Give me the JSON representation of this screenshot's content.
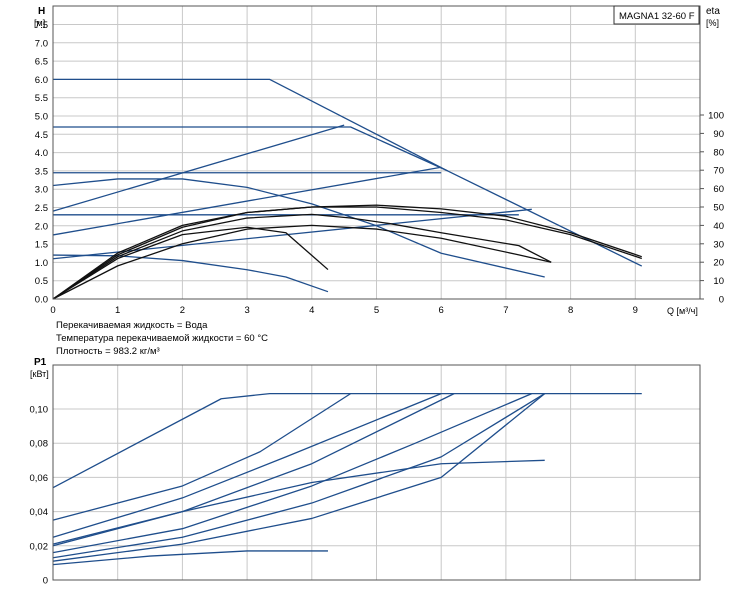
{
  "chart_data": [
    {
      "type": "line",
      "title": "MAGNA1 32-60 F",
      "y_axis_title": "H",
      "y_axis_unit": "[м]",
      "y2_axis_title": "eta",
      "y2_axis_unit": "[%]",
      "x_axis_unit": "Q [м³/ч]",
      "xlim": [
        0,
        10
      ],
      "ylim": [
        0,
        8
      ],
      "y2lim": [
        0,
        130
      ],
      "x_ticks": [
        "0",
        "1",
        "2",
        "3",
        "4",
        "5",
        "6",
        "7",
        "8",
        "9"
      ],
      "y_ticks": [
        "0.0",
        "0.5",
        "1.0",
        "1.5",
        "2.0",
        "2.5",
        "3.0",
        "3.5",
        "4.0",
        "4.5",
        "5.0",
        "5.5",
        "6.0",
        "6.5",
        "7.0",
        "7.5"
      ],
      "y2_ticks": [
        "0",
        "10",
        "20",
        "30",
        "40",
        "50",
        "60",
        "70",
        "80",
        "90",
        "100"
      ],
      "grid": true,
      "notes": [
        "Перекачиваемая жидкость = Вода",
        "Температура перекачиваемой жидкости = 60 °C",
        "Плотность = 983.2 кг/м³"
      ],
      "series": [
        {
          "kind": "head",
          "points": [
            [
              0,
              6.0
            ],
            [
              3.35,
              6.0
            ],
            [
              6.1,
              3.5
            ],
            [
              9.1,
              0.9
            ]
          ]
        },
        {
          "kind": "head",
          "points": [
            [
              0,
              4.7
            ],
            [
              4.6,
              4.7
            ],
            [
              6.1,
              3.5
            ]
          ]
        },
        {
          "kind": "head",
          "points": [
            [
              0,
              3.45
            ],
            [
              6.0,
              3.45
            ]
          ]
        },
        {
          "kind": "head",
          "points": [
            [
              0,
              2.3
            ],
            [
              7.2,
              2.3
            ]
          ]
        },
        {
          "kind": "head",
          "points": [
            [
              0,
              2.4
            ],
            [
              4.5,
              4.75
            ]
          ]
        },
        {
          "kind": "head",
          "points": [
            [
              0,
              1.75
            ],
            [
              6.0,
              3.6
            ]
          ]
        },
        {
          "kind": "head",
          "points": [
            [
              0,
              1.1
            ],
            [
              7.4,
              2.45
            ]
          ]
        },
        {
          "kind": "head",
          "points": [
            [
              0,
              3.1
            ],
            [
              1.0,
              3.28
            ],
            [
              2.0,
              3.28
            ],
            [
              3.0,
              3.05
            ],
            [
              4.0,
              2.6
            ],
            [
              5.0,
              2.0
            ],
            [
              6.0,
              1.25
            ],
            [
              7.6,
              0.6
            ]
          ]
        },
        {
          "kind": "head",
          "points": [
            [
              0,
              1.2
            ],
            [
              1.0,
              1.18
            ],
            [
              2.0,
              1.05
            ],
            [
              3.0,
              0.8
            ],
            [
              3.6,
              0.6
            ],
            [
              4.25,
              0.2
            ]
          ]
        },
        {
          "kind": "eta",
          "points": [
            [
              0,
              0
            ],
            [
              1,
              23
            ],
            [
              2,
              37
            ],
            [
              3,
              44
            ],
            [
              4,
              46
            ],
            [
              4.6,
              44
            ],
            [
              5.2,
              41
            ],
            [
              6,
              36
            ],
            [
              7.2,
              29
            ],
            [
              7.7,
              20
            ]
          ]
        },
        {
          "kind": "eta",
          "points": [
            [
              0,
              0
            ],
            [
              1,
              25
            ],
            [
              2,
              40
            ],
            [
              3,
              47
            ],
            [
              4,
              50
            ],
            [
              5,
              51
            ],
            [
              6,
              49
            ],
            [
              7,
              45
            ],
            [
              8,
              36
            ],
            [
              9.1,
              23
            ]
          ]
        },
        {
          "kind": "eta",
          "points": [
            [
              0,
              0
            ],
            [
              1,
              24
            ],
            [
              2,
              39
            ],
            [
              3,
              47
            ],
            [
              4,
              50
            ],
            [
              5,
              50
            ],
            [
              6,
              47
            ],
            [
              7,
              43
            ],
            [
              8,
              35
            ],
            [
              9.1,
              22
            ]
          ]
        },
        {
          "kind": "eta",
          "points": [
            [
              0,
              0
            ],
            [
              1,
              22
            ],
            [
              2,
              35
            ],
            [
              3,
              39
            ],
            [
              3.6,
              36
            ],
            [
              4.25,
              16
            ]
          ]
        },
        {
          "kind": "eta",
          "points": [
            [
              0,
              0
            ],
            [
              1,
              18
            ],
            [
              2,
              30
            ],
            [
              3,
              38
            ],
            [
              4,
              40
            ],
            [
              5,
              38
            ],
            [
              6,
              33
            ],
            [
              7.2,
              24
            ],
            [
              7.7,
              20
            ]
          ]
        }
      ]
    },
    {
      "type": "line",
      "y_axis_title": "P1",
      "y_axis_unit": "[кВт]",
      "xlim": [
        0,
        10
      ],
      "ylim": [
        0,
        0.12
      ],
      "y_ticks": [
        "0",
        "0,02",
        "0,04",
        "0,06",
        "0,08",
        "0,10"
      ],
      "grid": true,
      "series": [
        {
          "points": [
            [
              0,
              0.054
            ],
            [
              2.6,
              0.106
            ],
            [
              3.35,
              0.109
            ],
            [
              9.1,
              0.109
            ]
          ]
        },
        {
          "points": [
            [
              0,
              0.035
            ],
            [
              2.0,
              0.055
            ],
            [
              3.2,
              0.075
            ],
            [
              4.6,
              0.109
            ]
          ]
        },
        {
          "points": [
            [
              0,
              0.025
            ],
            [
              2.0,
              0.048
            ],
            [
              3.6,
              0.072
            ],
            [
              6.0,
              0.109
            ]
          ]
        },
        {
          "points": [
            [
              0,
              0.021
            ],
            [
              2.0,
              0.04
            ],
            [
              4.0,
              0.068
            ],
            [
              6.2,
              0.109
            ]
          ]
        },
        {
          "points": [
            [
              0,
              0.016
            ],
            [
              2.0,
              0.03
            ],
            [
              4.0,
              0.055
            ],
            [
              5.6,
              0.08
            ],
            [
              7.4,
              0.109
            ]
          ]
        },
        {
          "points": [
            [
              0,
              0.013
            ],
            [
              2.0,
              0.025
            ],
            [
              4.0,
              0.045
            ],
            [
              6.0,
              0.072
            ],
            [
              7.6,
              0.109
            ]
          ]
        },
        {
          "points": [
            [
              0,
              0.011
            ],
            [
              2.0,
              0.021
            ],
            [
              4.0,
              0.036
            ],
            [
              6.0,
              0.06
            ],
            [
              7.6,
              0.109
            ]
          ]
        },
        {
          "points": [
            [
              0,
              0.02
            ],
            [
              2.0,
              0.04
            ],
            [
              4.0,
              0.057
            ],
            [
              6.0,
              0.068
            ],
            [
              7.6,
              0.07
            ]
          ]
        },
        {
          "points": [
            [
              0,
              0.009
            ],
            [
              1.5,
              0.014
            ],
            [
              3.0,
              0.017
            ],
            [
              4.25,
              0.017
            ]
          ]
        }
      ]
    }
  ]
}
